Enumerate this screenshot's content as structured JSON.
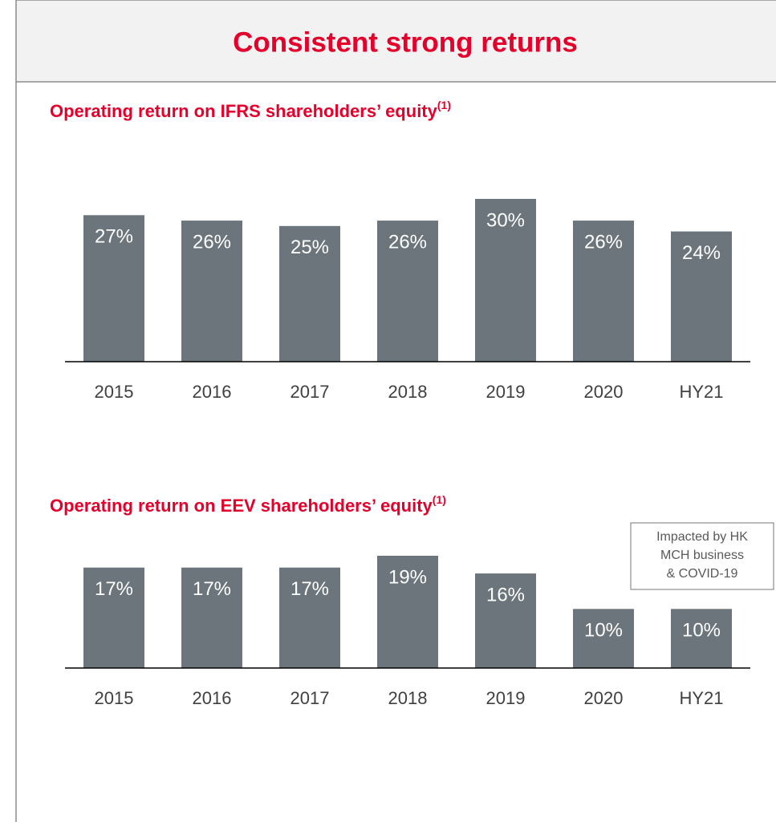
{
  "header": {
    "title": "Consistent strong returns"
  },
  "chart_data": [
    {
      "type": "bar",
      "title": "Operating return on IFRS shareholders’ equity",
      "title_superscript": "(1)",
      "categories": [
        "2015",
        "2016",
        "2017",
        "2018",
        "2019",
        "2020",
        "HY21"
      ],
      "values": [
        27,
        26,
        25,
        26,
        30,
        26,
        24
      ],
      "value_labels": [
        "27%",
        "26%",
        "25%",
        "26%",
        "30%",
        "26%",
        "24%"
      ],
      "color": "#6b757b"
    },
    {
      "type": "bar",
      "title": "Operating return on EEV shareholders’ equity",
      "title_superscript": "(1)",
      "categories": [
        "2015",
        "2016",
        "2017",
        "2018",
        "2019",
        "2020",
        "HY21"
      ],
      "values": [
        17,
        17,
        17,
        19,
        16,
        10,
        10
      ],
      "value_labels": [
        "17%",
        "17%",
        "17%",
        "19%",
        "16%",
        "10%",
        "10%"
      ],
      "color": "#6b757b",
      "annotation": [
        "Impacted by HK",
        "MCH business",
        "& COVID-19"
      ]
    }
  ]
}
